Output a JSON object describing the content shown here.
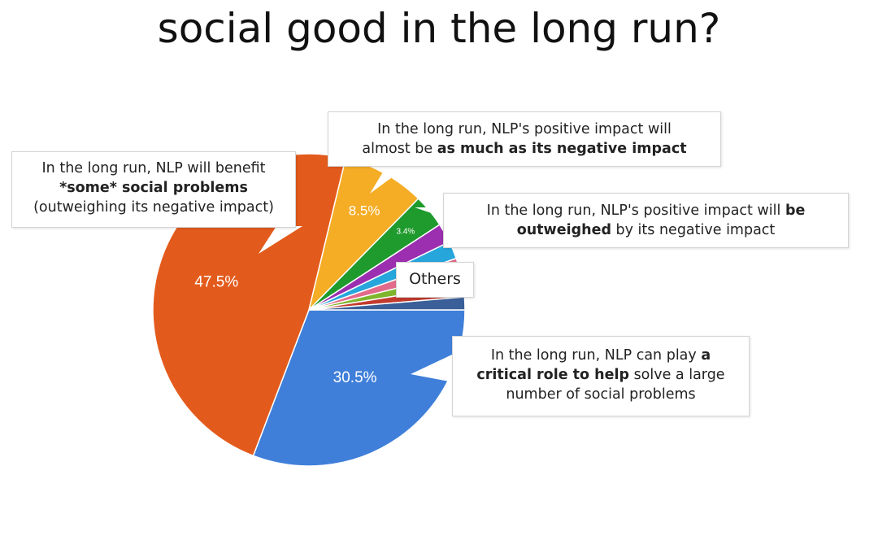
{
  "chart_data": {
    "type": "pie",
    "title": "social good in the long run?",
    "slices": [
      {
        "label": "In the long run, NLP can play a critical role to help solve a large number of social problems",
        "value": 30.5,
        "color": "#3f7fd9",
        "value_label": "30.5%"
      },
      {
        "label": "In the long run, NLP will benefit *some* social problems (outweighing its negative impact)",
        "value": 47.5,
        "color": "#e35b1c",
        "value_label": "47.5%"
      },
      {
        "label": "In the long run, NLP's positive impact will almost be as much as its negative impact",
        "value": 8.5,
        "color": "#f5ad26",
        "value_label": "8.5%"
      },
      {
        "label": "In the long run, NLP's positive impact will be outweighed by its negative impact",
        "value": 3.4,
        "color": "#1f9a2c",
        "value_label": "3.4%"
      },
      {
        "label": "Others",
        "value": 2.0,
        "color": "#9b2fb0",
        "value_label": ""
      },
      {
        "label": "Others",
        "value": 1.8,
        "color": "#27a6dc",
        "value_label": ""
      },
      {
        "label": "Others",
        "value": 1.5,
        "color": "#e26a8a",
        "value_label": ""
      },
      {
        "label": "Others",
        "value": 1.3,
        "color": "#7fb52d",
        "value_label": ""
      },
      {
        "label": "Others",
        "value": 1.2,
        "color": "#c23b2e",
        "value_label": ""
      },
      {
        "label": "Others",
        "value": 1.3,
        "color": "#3a5f99",
        "value_label": ""
      }
    ]
  },
  "callouts": {
    "some": {
      "line1": "In the long run, NLP will benefit",
      "line2_bold": "*some* social problems",
      "line3": "(outweighing its negative impact)"
    },
    "much": {
      "line1": "In the long run, NLP's positive impact will",
      "line2_pre": "almost be ",
      "line2_bold": "as much as its negative impact"
    },
    "outw": {
      "line1_pre": "In the long run, NLP's positive impact will ",
      "line1_bold": "be",
      "line2_bold": "outweighed",
      "line2_post": " by its negative impact"
    },
    "others": {
      "text": "Others"
    },
    "crit": {
      "line1_pre": "In the long run, NLP can play ",
      "line1_bold": "a",
      "line2_bold": "critical role to help",
      "line2_post": " solve a large",
      "line3": "number of social problems"
    }
  }
}
